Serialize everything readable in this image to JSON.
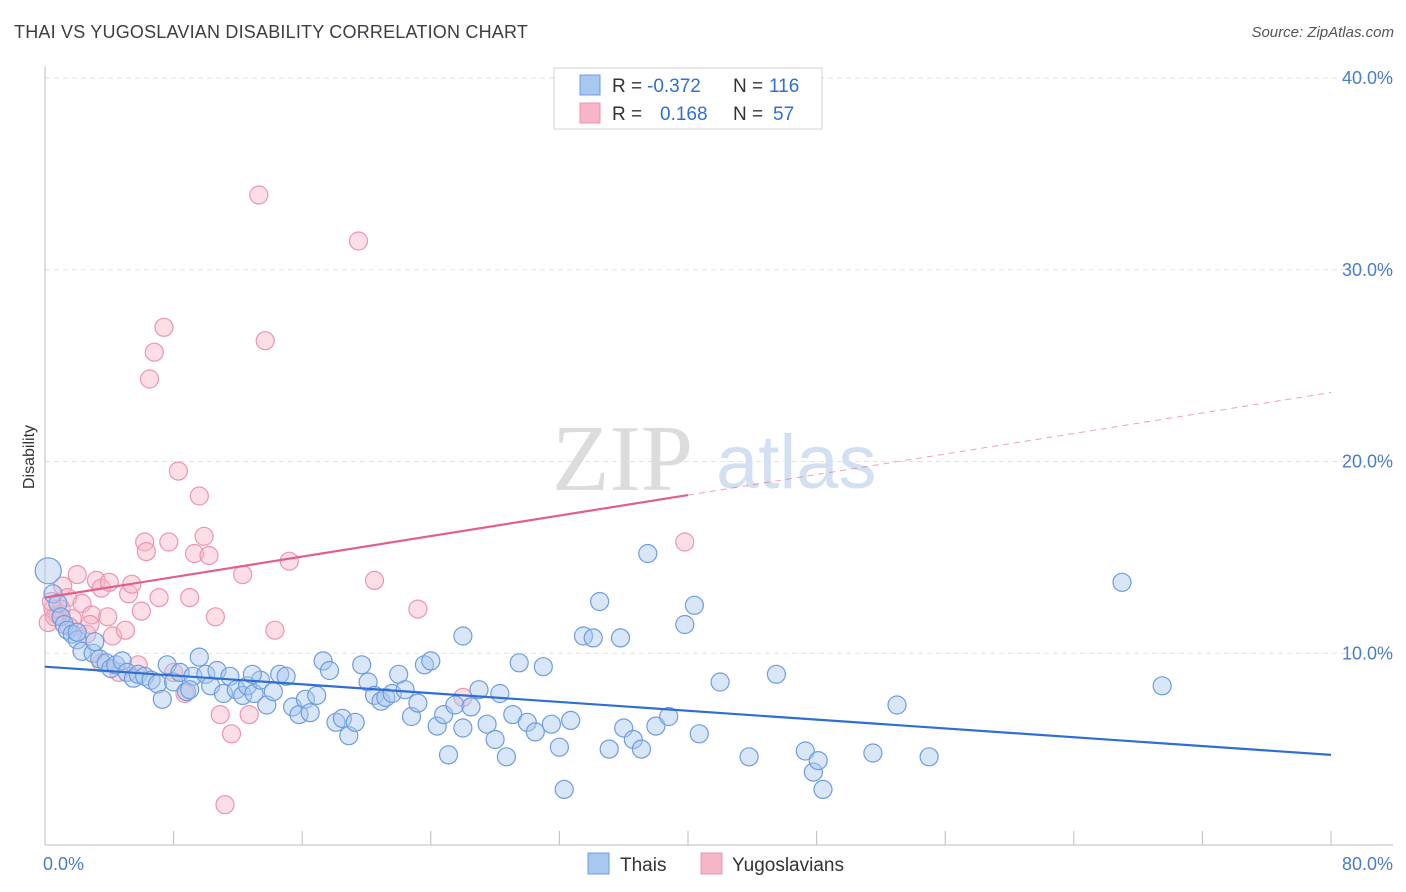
{
  "header": {
    "title": "THAI VS YUGOSLAVIAN DISABILITY CORRELATION CHART",
    "source": "Source: ZipAtlas.com"
  },
  "watermark": {
    "zip": "ZIP",
    "atlas": "atlas"
  },
  "legend": {
    "r_label": "R =",
    "n_label": "N =",
    "rows": [
      {
        "r": "-0.372",
        "n": "116",
        "color": "#a9c8f0"
      },
      {
        "r": "0.168",
        "n": "57",
        "color": "#f7b6c8"
      }
    ]
  },
  "chart_data": {
    "type": "scatter",
    "title": "THAI VS YUGOSLAVIAN DISABILITY CORRELATION CHART",
    "ylabel": "Disability",
    "xlabel": "",
    "xlim": [
      0,
      80
    ],
    "ylim": [
      0,
      40
    ],
    "x_tick_labels": [
      "0.0%",
      "80.0%"
    ],
    "y_ticks": [
      10,
      20,
      30,
      40
    ],
    "y_tick_labels": [
      "10.0%",
      "20.0%",
      "30.0%",
      "40.0%"
    ],
    "grid": true,
    "legend_position": "top-center",
    "series": [
      {
        "name": "Thais",
        "color": "#6d9de0",
        "fill": "#a9c8f0",
        "line_color": "#2f6fd0",
        "trend": {
          "x": [
            0,
            80
          ],
          "y": [
            9.3,
            4.7
          ],
          "dashed_from": null
        },
        "points": [
          [
            0.2,
            14.3
          ],
          [
            0.5,
            13.1
          ],
          [
            0.8,
            12.6
          ],
          [
            1.0,
            11.9
          ],
          [
            1.2,
            11.5
          ],
          [
            1.4,
            11.2
          ],
          [
            1.7,
            11.0
          ],
          [
            2.0,
            10.7
          ],
          [
            2.3,
            10.1
          ],
          [
            3.0,
            10.0
          ],
          [
            3.1,
            10.6
          ],
          [
            3.4,
            9.7
          ],
          [
            3.8,
            9.5
          ],
          [
            4.1,
            9.2
          ],
          [
            4.4,
            9.4
          ],
          [
            4.8,
            9.6
          ],
          [
            5.1,
            9.0
          ],
          [
            5.5,
            8.7
          ],
          [
            5.8,
            8.9
          ],
          [
            6.2,
            8.8
          ],
          [
            6.6,
            8.6
          ],
          [
            7.0,
            8.4
          ],
          [
            7.3,
            7.6
          ],
          [
            7.6,
            9.4
          ],
          [
            8.0,
            8.5
          ],
          [
            8.4,
            9.0
          ],
          [
            8.8,
            8.0
          ],
          [
            9.2,
            8.8
          ],
          [
            9.6,
            9.8
          ],
          [
            10.0,
            8.9
          ],
          [
            10.3,
            8.3
          ],
          [
            10.7,
            9.1
          ],
          [
            11.1,
            7.9
          ],
          [
            11.5,
            8.8
          ],
          [
            11.9,
            8.1
          ],
          [
            12.3,
            7.8
          ],
          [
            12.6,
            8.3
          ],
          [
            13.0,
            7.9
          ],
          [
            13.4,
            8.6
          ],
          [
            13.8,
            7.3
          ],
          [
            14.2,
            8.0
          ],
          [
            14.6,
            8.9
          ],
          [
            15.0,
            8.8
          ],
          [
            15.4,
            7.2
          ],
          [
            15.8,
            6.8
          ],
          [
            16.2,
            7.6
          ],
          [
            16.5,
            6.9
          ],
          [
            16.9,
            7.8
          ],
          [
            17.3,
            9.6
          ],
          [
            17.7,
            9.1
          ],
          [
            18.1,
            6.4
          ],
          [
            18.5,
            6.6
          ],
          [
            18.9,
            5.7
          ],
          [
            19.3,
            6.4
          ],
          [
            19.7,
            9.4
          ],
          [
            20.1,
            8.5
          ],
          [
            20.5,
            7.8
          ],
          [
            20.9,
            7.5
          ],
          [
            21.2,
            7.7
          ],
          [
            21.6,
            7.9
          ],
          [
            22.0,
            8.9
          ],
          [
            22.4,
            8.1
          ],
          [
            22.8,
            6.7
          ],
          [
            23.2,
            7.4
          ],
          [
            23.6,
            9.4
          ],
          [
            24.0,
            9.6
          ],
          [
            24.4,
            6.2
          ],
          [
            24.8,
            6.8
          ],
          [
            25.1,
            4.7
          ],
          [
            25.5,
            7.3
          ],
          [
            26.0,
            6.1
          ],
          [
            26.5,
            7.2
          ],
          [
            27.0,
            8.1
          ],
          [
            27.5,
            6.3
          ],
          [
            28.0,
            5.5
          ],
          [
            28.3,
            7.9
          ],
          [
            28.7,
            4.6
          ],
          [
            29.1,
            6.8
          ],
          [
            29.5,
            9.5
          ],
          [
            30.0,
            6.4
          ],
          [
            30.5,
            5.9
          ],
          [
            31.0,
            9.3
          ],
          [
            31.5,
            6.3
          ],
          [
            32.0,
            5.1
          ],
          [
            32.3,
            2.9
          ],
          [
            32.7,
            6.5
          ],
          [
            33.5,
            10.9
          ],
          [
            34.1,
            10.8
          ],
          [
            34.5,
            12.7
          ],
          [
            35.1,
            5.0
          ],
          [
            36.0,
            6.1
          ],
          [
            36.6,
            5.5
          ],
          [
            37.1,
            5.0
          ],
          [
            37.5,
            15.2
          ],
          [
            38.0,
            6.2
          ],
          [
            38.8,
            6.7
          ],
          [
            39.8,
            11.5
          ],
          [
            40.4,
            12.5
          ],
          [
            40.7,
            5.8
          ],
          [
            42.0,
            8.5
          ],
          [
            43.8,
            4.6
          ],
          [
            45.5,
            8.9
          ],
          [
            47.3,
            4.9
          ],
          [
            47.8,
            3.8
          ],
          [
            48.1,
            4.4
          ],
          [
            48.4,
            2.9
          ],
          [
            51.5,
            4.8
          ],
          [
            53.0,
            7.3
          ],
          [
            55.0,
            4.6
          ],
          [
            67.0,
            13.7
          ],
          [
            69.5,
            8.3
          ],
          [
            35.8,
            10.8
          ],
          [
            26.0,
            10.9
          ],
          [
            9.0,
            8.1
          ],
          [
            12.9,
            8.9
          ],
          [
            2.0,
            11.1
          ]
        ]
      },
      {
        "name": "Yugoslavians",
        "color": "#ef93b0",
        "fill": "#f7b6c8",
        "line_color": "#e0608c",
        "trend": {
          "x": [
            0,
            80
          ],
          "y": [
            12.9,
            23.6
          ],
          "dashed_from": 40
        },
        "points": [
          [
            0.2,
            11.6
          ],
          [
            0.5,
            12.3
          ],
          [
            0.8,
            12.0
          ],
          [
            1.1,
            13.5
          ],
          [
            1.4,
            12.9
          ],
          [
            1.7,
            11.8
          ],
          [
            2.0,
            14.1
          ],
          [
            2.3,
            12.6
          ],
          [
            2.6,
            11.0
          ],
          [
            2.9,
            12.0
          ],
          [
            3.2,
            13.8
          ],
          [
            3.5,
            13.4
          ],
          [
            3.9,
            11.9
          ],
          [
            4.2,
            10.9
          ],
          [
            4.6,
            9.0
          ],
          [
            5.0,
            11.2
          ],
          [
            5.2,
            13.1
          ],
          [
            5.4,
            13.6
          ],
          [
            5.8,
            9.4
          ],
          [
            6.0,
            12.2
          ],
          [
            6.2,
            15.8
          ],
          [
            6.5,
            24.3
          ],
          [
            6.8,
            25.7
          ],
          [
            7.1,
            12.9
          ],
          [
            7.4,
            27.0
          ],
          [
            7.7,
            15.8
          ],
          [
            8.0,
            9.0
          ],
          [
            8.3,
            19.5
          ],
          [
            8.7,
            7.9
          ],
          [
            9.0,
            12.9
          ],
          [
            9.3,
            15.2
          ],
          [
            9.6,
            18.2
          ],
          [
            9.9,
            16.1
          ],
          [
            10.2,
            15.1
          ],
          [
            10.6,
            11.9
          ],
          [
            10.9,
            6.8
          ],
          [
            11.2,
            2.1
          ],
          [
            11.6,
            5.8
          ],
          [
            12.3,
            14.1
          ],
          [
            12.7,
            6.8
          ],
          [
            13.3,
            33.9
          ],
          [
            13.7,
            26.3
          ],
          [
            14.3,
            11.2
          ],
          [
            15.2,
            14.8
          ],
          [
            19.5,
            31.5
          ],
          [
            20.5,
            13.8
          ],
          [
            23.2,
            12.3
          ],
          [
            26.0,
            7.7
          ],
          [
            39.8,
            15.8
          ],
          [
            1.0,
            12.3
          ],
          [
            2.8,
            11.5
          ],
          [
            4.0,
            13.7
          ],
          [
            6.3,
            15.3
          ],
          [
            3.5,
            9.5
          ],
          [
            0.6,
            11.9
          ],
          [
            1.5,
            11.4
          ],
          [
            0.4,
            12.7
          ]
        ]
      }
    ]
  },
  "bottom_legend": {
    "items": [
      {
        "label": "Thais",
        "color": "#a9c8f0"
      },
      {
        "label": "Yugoslavians",
        "color": "#f7b6c8"
      }
    ]
  }
}
